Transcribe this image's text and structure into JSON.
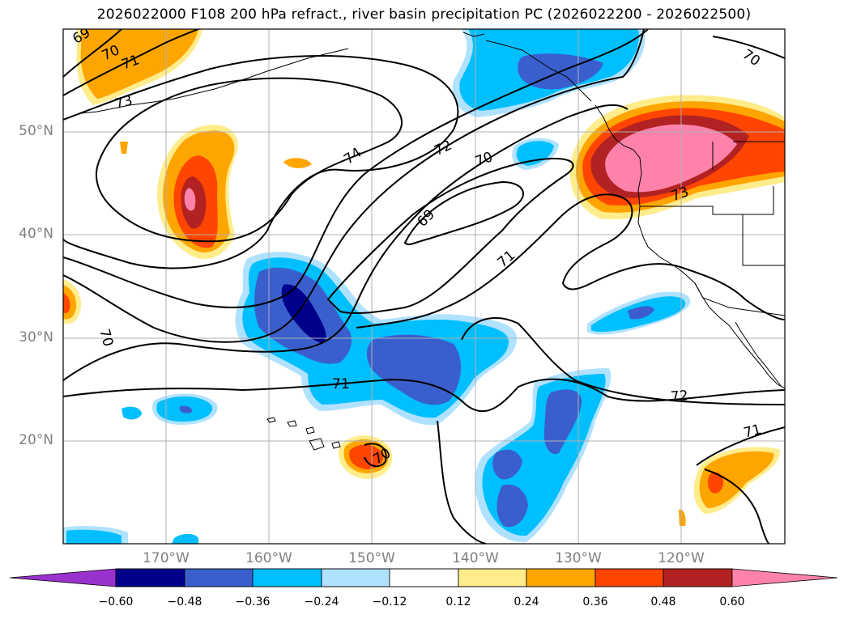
{
  "title": "2026022000 F108 200 hPa refract., river basin precipitation PC (2026022200 - 2026022500)",
  "lat_labels": [
    "50°N",
    "40°N",
    "30°N",
    "20°N"
  ],
  "lon_labels": [
    "170°W",
    "160°W",
    "150°W",
    "140°W",
    "130°W",
    "120°W"
  ],
  "colorbar": {
    "tick_labels": [
      "−0.60",
      "−0.48",
      "−0.36",
      "−0.24",
      "−0.12",
      "0.12",
      "0.24",
      "0.36",
      "0.48",
      "0.60"
    ],
    "colors": [
      "#9932cc",
      "#00008b",
      "#3a5fcd",
      "#00bfff",
      "#b0e2ff",
      "#ffffff",
      "#ffec8b",
      "#ffa500",
      "#ff4500",
      "#b22222",
      "#ff82ab"
    ]
  },
  "contour_labels": [
    "69",
    "70",
    "71",
    "73",
    "74",
    "72",
    "70",
    "69",
    "71",
    "73",
    "70",
    "71",
    "72",
    "70",
    "71"
  ]
}
